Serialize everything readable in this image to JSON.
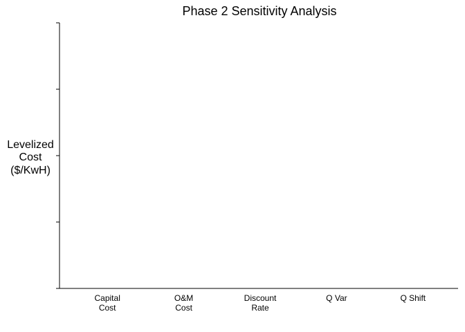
{
  "chart_data": {
    "type": "bar",
    "title": "Phase 2 Sensitivity Analysis",
    "y_label": "Levelized\nCost\n($/KwH)",
    "categories": [
      "Capital\nCost",
      "O&M\nCost",
      "Discount\nRate",
      "Q Var",
      "Q Shift"
    ]
  }
}
